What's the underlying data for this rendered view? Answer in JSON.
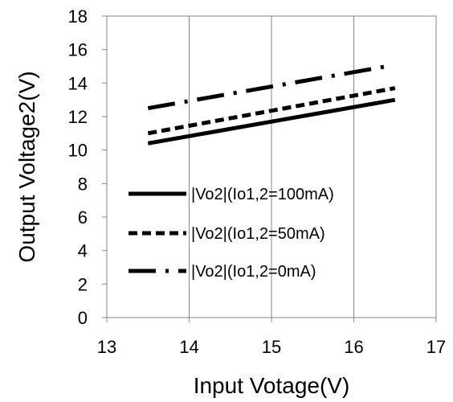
{
  "chart_data": {
    "type": "line",
    "xlabel": "Input Votage(V)",
    "ylabel": "Output Voltage2(V)",
    "xlim": [
      13,
      17
    ],
    "ylim": [
      0,
      18
    ],
    "xticks": [
      13,
      14,
      15,
      16,
      17
    ],
    "yticks": [
      0,
      2,
      4,
      6,
      8,
      10,
      12,
      14,
      16,
      18
    ],
    "grid": "vertical",
    "legend_position": "lower-left",
    "series": [
      {
        "name": "|Vo2|(Io1,2=100mA)",
        "style": "solid",
        "x": [
          13.5,
          16.5
        ],
        "y": [
          10.4,
          13.0
        ]
      },
      {
        "name": "|Vo2|(Io1,2=50mA)",
        "style": "short-dash",
        "x": [
          13.5,
          16.5
        ],
        "y": [
          11.0,
          13.7
        ]
      },
      {
        "name": "|Vo2|(Io1,2=0mA)",
        "style": "long-dash-dot",
        "x": [
          13.5,
          16.4
        ],
        "y": [
          12.5,
          15.0
        ]
      }
    ]
  }
}
